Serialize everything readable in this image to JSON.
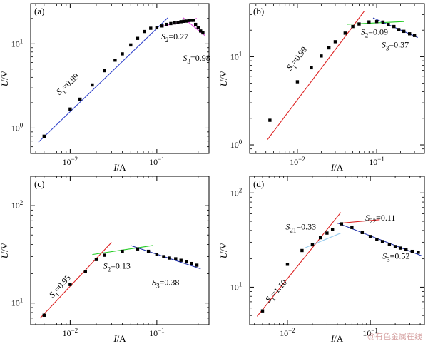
{
  "watermark": "@有色金属在线",
  "chart_data": [
    {
      "type": "scatter",
      "panel_label": "(a)",
      "xlabel_var": "I",
      "xlabel_unit": "/A",
      "ylabel_var": "U",
      "ylabel_unit": "/V",
      "xscale": "log",
      "yscale": "log",
      "xlim": [
        0.0035,
        0.4
      ],
      "ylim": [
        0.5,
        30
      ],
      "x_ticks": [
        {
          "v": 0.01,
          "b": "10",
          "e": "−2"
        },
        {
          "v": 0.1,
          "b": "10",
          "e": "−1"
        }
      ],
      "y_ticks": [
        {
          "v": 1,
          "b": "10",
          "e": "0"
        },
        {
          "v": 10,
          "b": "10",
          "e": "1"
        }
      ],
      "series": [
        {
          "marker": "square",
          "color": "#000000",
          "x": [
            0.005,
            0.01,
            0.013,
            0.018,
            0.025,
            0.033,
            0.04,
            0.05,
            0.06,
            0.072,
            0.085,
            0.1,
            0.115,
            0.13,
            0.145,
            0.16,
            0.175,
            0.19,
            0.205,
            0.22,
            0.235,
            0.25,
            0.265,
            0.28,
            0.3,
            0.32,
            0.34
          ],
          "y": [
            0.8,
            1.68,
            2.2,
            3.25,
            4.8,
            6.4,
            7.6,
            9.7,
            11.6,
            14.0,
            15.3,
            15.5,
            16.3,
            17.0,
            17.4,
            17.7,
            18.0,
            18.3,
            18.5,
            18.6,
            18.9,
            19.0,
            19.0,
            17.0,
            15.5,
            14.2,
            13.5
          ]
        }
      ],
      "fits": [
        {
          "x": [
            0.0043,
            0.135
          ],
          "y": [
            0.68,
            20.5
          ],
          "color": "#3344cc"
        },
        {
          "x": [
            0.11,
            0.29
          ],
          "y": [
            16.0,
            20.0
          ],
          "color": "#dd44dd"
        },
        {
          "x": [
            0.2,
            0.36
          ],
          "y": [
            20.5,
            12.5
          ],
          "color": "#dd44dd"
        }
      ],
      "annotations": [
        {
          "s": "S",
          "sub": "1",
          "t": "=0.99",
          "x": 0.0075,
          "y": 2.45,
          "rot": -42
        },
        {
          "s": "S",
          "sub": "2",
          "t": "=0.27",
          "x": 0.112,
          "y": 11.3,
          "rot": 0
        },
        {
          "s": "S",
          "sub": "3",
          "t": "=0.98",
          "x": 0.2,
          "y": 6.3,
          "rot": 0
        }
      ]
    },
    {
      "type": "scatter",
      "panel_label": "(b)",
      "xlabel_var": "I",
      "xlabel_unit": "/A",
      "ylabel_var": "U",
      "ylabel_unit": "/V",
      "xscale": "log",
      "yscale": "log",
      "xlim": [
        0.0025,
        0.4
      ],
      "ylim": [
        0.8,
        40
      ],
      "x_ticks": [
        {
          "v": 0.01,
          "b": "10",
          "e": "−2"
        },
        {
          "v": 0.1,
          "b": "10",
          "e": "−1"
        }
      ],
      "y_ticks": [
        {
          "v": 1,
          "b": "10",
          "e": "0"
        },
        {
          "v": 10,
          "b": "10",
          "e": "1"
        }
      ],
      "series": [
        {
          "marker": "square",
          "color": "#000000",
          "x": [
            0.0045,
            0.01,
            0.015,
            0.02,
            0.025,
            0.03,
            0.04,
            0.05,
            0.06,
            0.08,
            0.1,
            0.12,
            0.14,
            0.165,
            0.19,
            0.22,
            0.26,
            0.3
          ],
          "y": [
            1.9,
            5.2,
            7.5,
            10.2,
            12.6,
            14.8,
            18.5,
            22.0,
            23.5,
            24.8,
            25.0,
            24.7,
            23.2,
            22.0,
            20.3,
            19.4,
            18.2,
            17.4
          ]
        }
      ],
      "fits": [
        {
          "x": [
            0.0042,
            0.07
          ],
          "y": [
            1.15,
            33.0
          ],
          "color": "#dd2222"
        },
        {
          "x": [
            0.042,
            0.22
          ],
          "y": [
            23.3,
            25.0
          ],
          "color": "#22cc22"
        },
        {
          "x": [
            0.09,
            0.33
          ],
          "y": [
            27.5,
            16.5
          ],
          "color": "#2233aa"
        }
      ],
      "annotations": [
        {
          "s": "S",
          "sub": "1",
          "t": "=0.99",
          "x": 0.0082,
          "y": 6.9,
          "rot": -52
        },
        {
          "s": "S",
          "sub": "2",
          "t": "=0.09",
          "x": 0.063,
          "y": 17.8,
          "rot": 0
        },
        {
          "s": "S",
          "sub": "3",
          "t": "=0.37",
          "x": 0.115,
          "y": 12.7,
          "rot": 0
        }
      ]
    },
    {
      "type": "scatter",
      "panel_label": "(c)",
      "xlabel_var": "I",
      "xlabel_unit": "/A",
      "ylabel_var": "U",
      "ylabel_unit": "/V",
      "xscale": "log",
      "yscale": "log",
      "xlim": [
        0.0035,
        0.4
      ],
      "ylim": [
        6,
        200
      ],
      "x_ticks": [
        {
          "v": 0.01,
          "b": "10",
          "e": "−2"
        },
        {
          "v": 0.1,
          "b": "10",
          "e": "−1"
        }
      ],
      "y_ticks": [
        {
          "v": 10,
          "b": "10",
          "e": "1"
        },
        {
          "v": 100,
          "b": "10",
          "e": "2"
        }
      ],
      "series": [
        {
          "marker": "square",
          "color": "#000000",
          "x": [
            0.005,
            0.01,
            0.015,
            0.02,
            0.025,
            0.04,
            0.06,
            0.08,
            0.1,
            0.12,
            0.14,
            0.165,
            0.19,
            0.22,
            0.25,
            0.29
          ],
          "y": [
            7.5,
            15.5,
            21.0,
            28.0,
            31.0,
            34.0,
            36.0,
            34.0,
            31.5,
            30.0,
            29.0,
            28.5,
            27.5,
            26.5,
            25.5,
            24.5
          ]
        }
      ],
      "fits": [
        {
          "x": [
            0.0045,
            0.03
          ],
          "y": [
            7.0,
            42.0
          ],
          "color": "#dd2222"
        },
        {
          "x": [
            0.018,
            0.09
          ],
          "y": [
            31.5,
            39.0
          ],
          "color": "#22cc22"
        },
        {
          "x": [
            0.05,
            0.32
          ],
          "y": [
            39.0,
            22.5
          ],
          "color": "#2233aa"
        }
      ],
      "annotations": [
        {
          "s": "S",
          "sub": "1",
          "t": "=0.95",
          "x": 0.0063,
          "y": 11.2,
          "rot": -48
        },
        {
          "s": "S",
          "sub": "2",
          "t": "=0.13",
          "x": 0.024,
          "y": 22.6,
          "rot": 0
        },
        {
          "s": "S",
          "sub": "3",
          "t": "=0.38",
          "x": 0.088,
          "y": 15.3,
          "rot": 0
        }
      ]
    },
    {
      "type": "scatter",
      "panel_label": "(d)",
      "xlabel_var": "I",
      "xlabel_unit": "/A",
      "ylabel_var": "U",
      "ylabel_unit": "/V",
      "xscale": "log",
      "yscale": "log",
      "xlim": [
        0.0035,
        0.45
      ],
      "ylim": [
        4,
        150
      ],
      "x_ticks": [
        {
          "v": 0.01,
          "b": "10",
          "e": "−2"
        },
        {
          "v": 0.1,
          "b": "10",
          "e": "−1"
        }
      ],
      "y_ticks": [
        {
          "v": 10,
          "b": "10",
          "e": "1"
        },
        {
          "v": 100,
          "b": "10",
          "e": "2"
        }
      ],
      "series": [
        {
          "marker": "square",
          "color": "#000000",
          "x": [
            0.005,
            0.01,
            0.015,
            0.02,
            0.025,
            0.03,
            0.035,
            0.045,
            0.06,
            0.08,
            0.1,
            0.12,
            0.14,
            0.17,
            0.2,
            0.23,
            0.27,
            0.32,
            0.38
          ],
          "y": [
            5.6,
            17.5,
            24.5,
            28.2,
            33.5,
            37.5,
            41.0,
            47.0,
            43.0,
            38.0,
            34.5,
            32.0,
            30.5,
            28.5,
            27.0,
            26.0,
            25.0,
            24.0,
            23.5
          ]
        }
      ],
      "fits": [
        {
          "x": [
            0.0043,
            0.044
          ],
          "y": [
            4.9,
            62.0
          ],
          "color": "#dd2222"
        },
        {
          "x": [
            0.016,
            0.044
          ],
          "y": [
            26.0,
            37.5
          ],
          "color": "#99ccee"
        },
        {
          "x": [
            0.04,
            0.13
          ],
          "y": [
            47.5,
            52.0
          ],
          "color": "#dd2222"
        },
        {
          "x": [
            0.04,
            0.42
          ],
          "y": [
            48.0,
            21.5
          ],
          "color": "#2233aa"
        }
      ],
      "annotations": [
        {
          "s": "S",
          "sub": "1",
          "t": "=1.10",
          "x": 0.006,
          "y": 6.8,
          "rot": -48
        },
        {
          "s": "S",
          "sub": "21",
          "t": "=0.33",
          "x": 0.0095,
          "y": 41.0,
          "rot": 0
        },
        {
          "s": "S",
          "sub": "22",
          "t": "=0.11",
          "x": 0.087,
          "y": 51.0,
          "rot": 0
        },
        {
          "s": "S",
          "sub": "3",
          "t": "=0.52",
          "x": 0.14,
          "y": 20.0,
          "rot": 0
        }
      ]
    }
  ]
}
